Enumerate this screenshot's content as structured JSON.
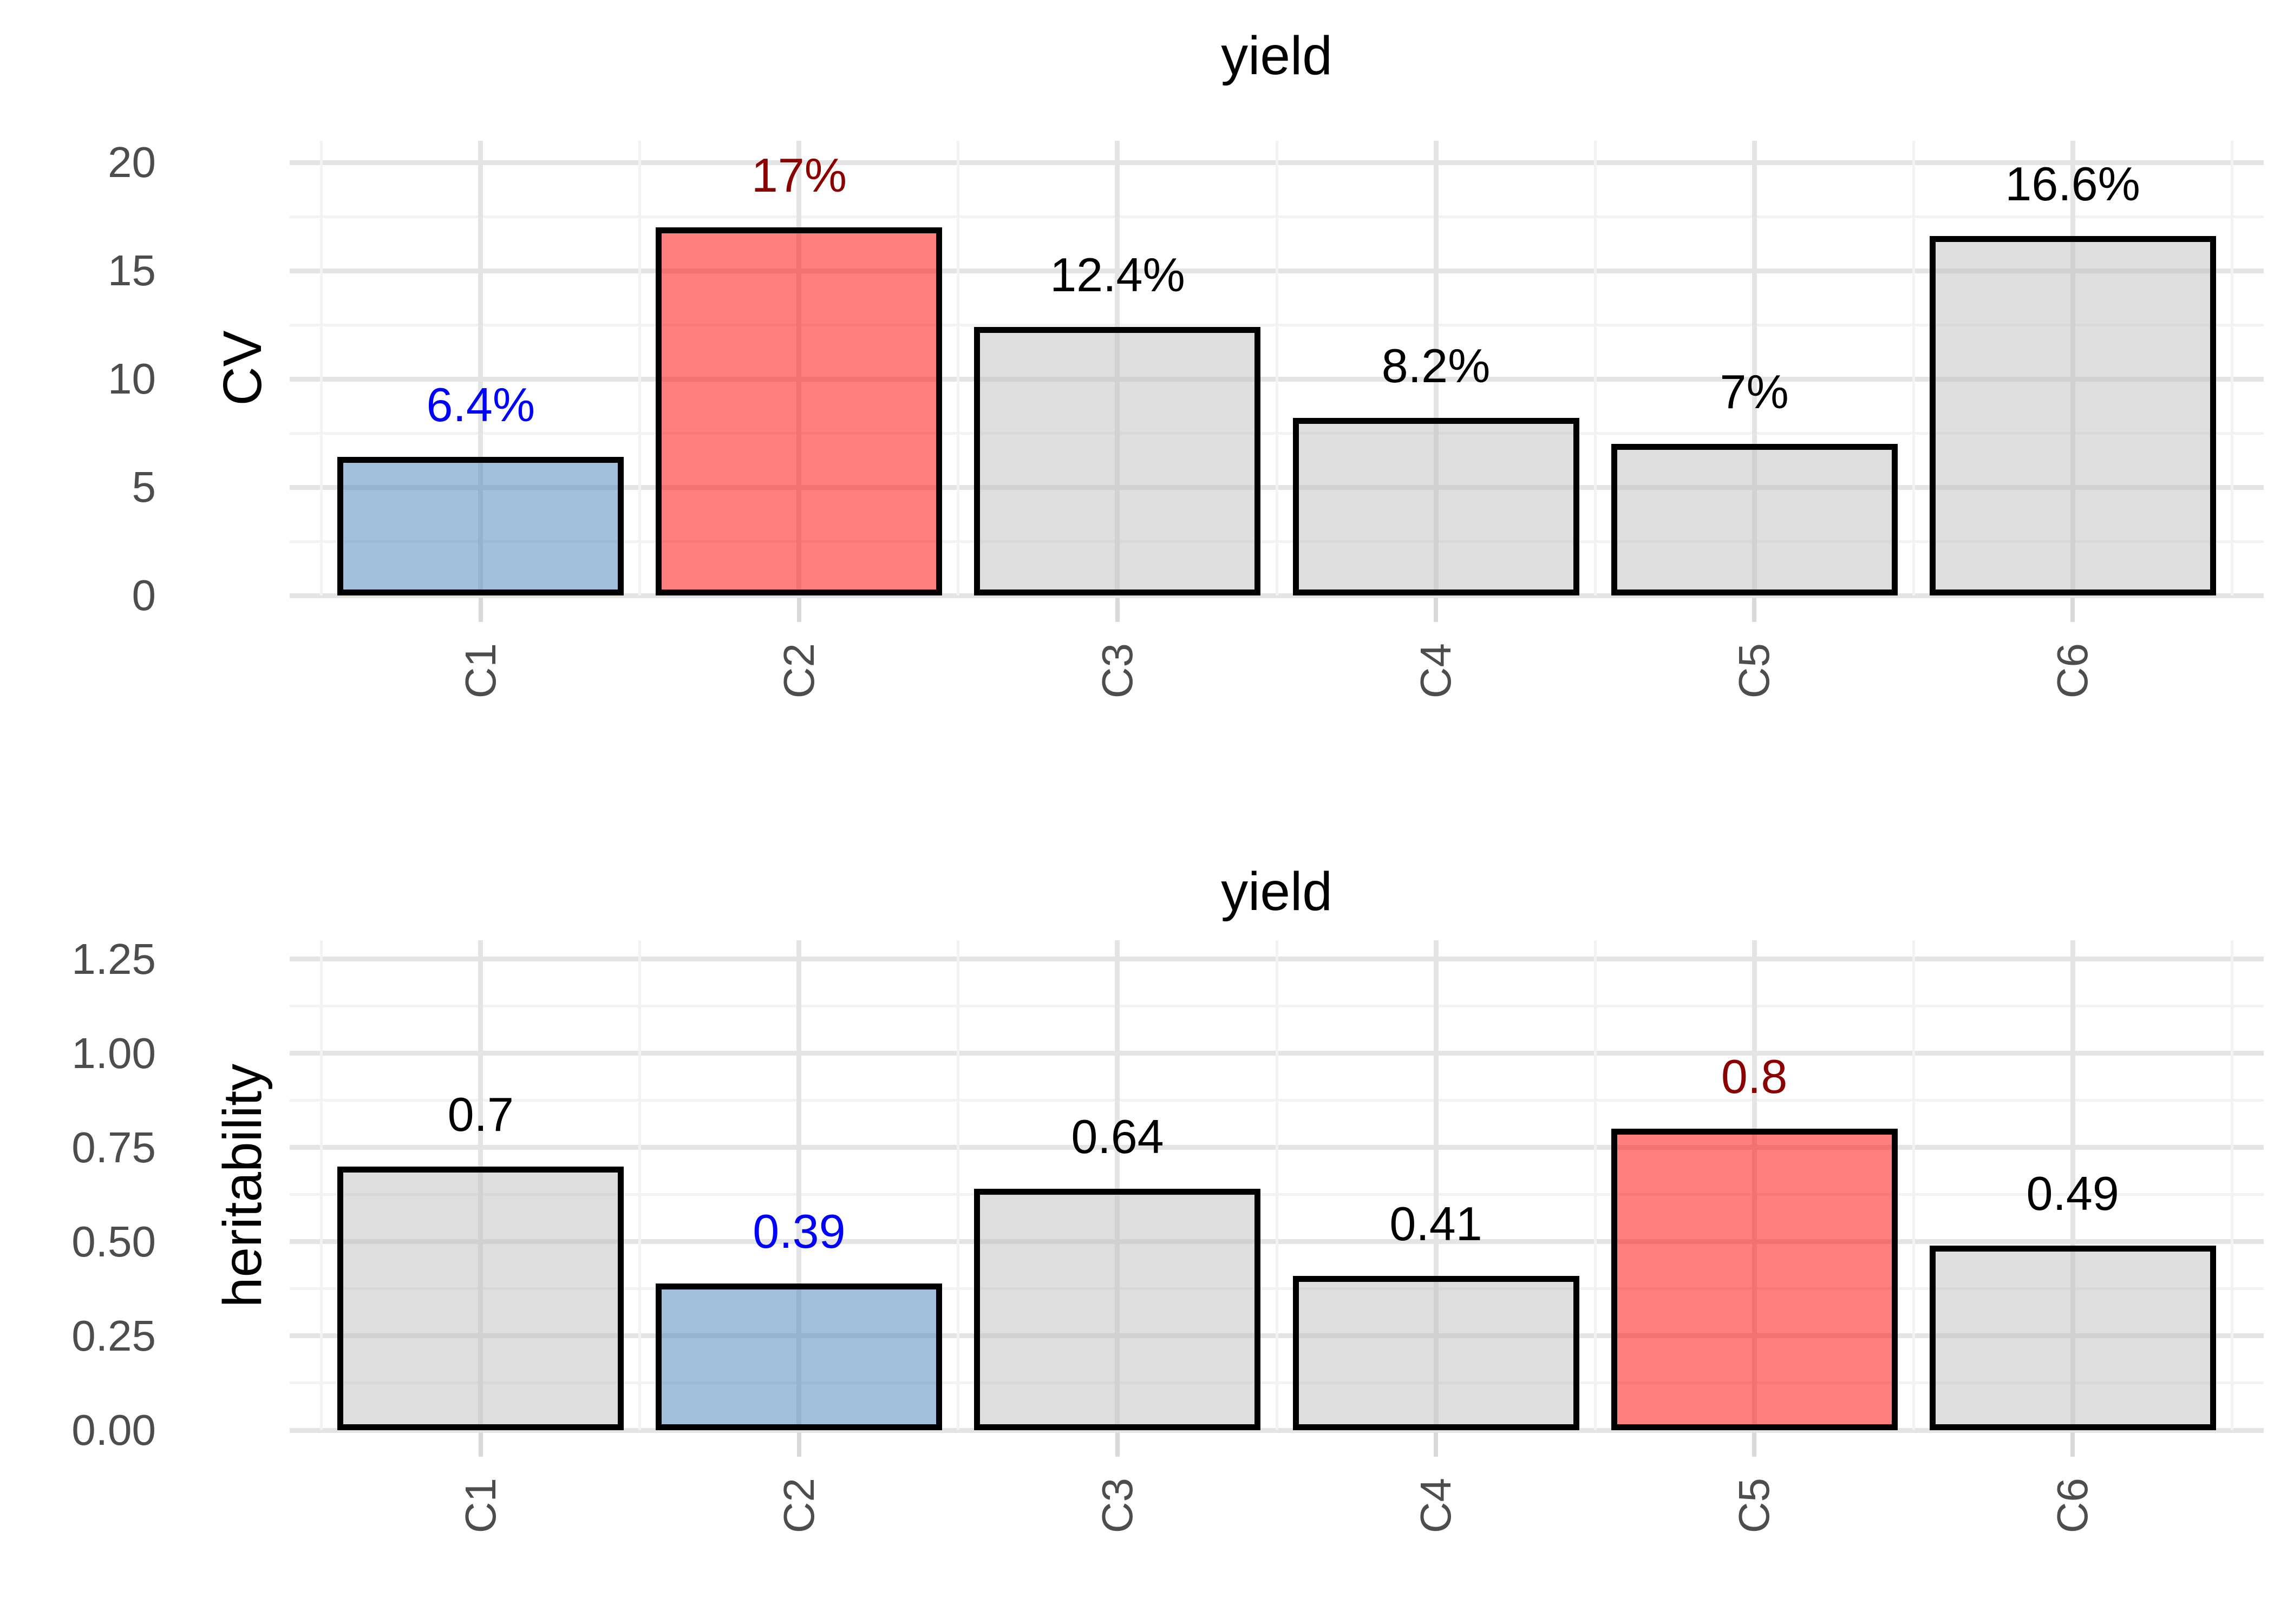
{
  "figure": {
    "description": "Two stacked bar charts sharing categories C1-C6, both titled yield",
    "background": "#FFFFFF"
  },
  "colors": {
    "grid_major": "#E4E4E4",
    "grid_minor": "#F2F2F2",
    "axis_text": "#4D4D4D",
    "tick_mark": "#D9D9D9",
    "bar_border": "#000000",
    "highlight_low_fill": "rgba(70,130,180,0.5)",
    "highlight_high_fill": "rgba(255,0,0,0.5)",
    "default_fill": "rgba(190,190,190,0.5)",
    "label_blue": "#0000FF",
    "label_darkred": "#8B0000",
    "label_black": "#000000"
  },
  "chart_data": [
    {
      "type": "bar",
      "title": "yield",
      "xlabel": "",
      "ylabel": "CV",
      "categories": [
        "C1",
        "C2",
        "C3",
        "C4",
        "C5",
        "C6"
      ],
      "values": [
        6.4,
        17,
        12.4,
        8.2,
        7,
        16.6
      ],
      "bar_labels": [
        "6.4%",
        "17%",
        "12.4%",
        "8.2%",
        "7%",
        "16.6%"
      ],
      "bar_label_colors": [
        "#0000FF",
        "#8B0000",
        "#000000",
        "#000000",
        "#000000",
        "#000000"
      ],
      "bar_fills": [
        "rgba(70,130,180,0.5)",
        "rgba(255,0,0,0.5)",
        "rgba(190,190,190,0.5)",
        "rgba(190,190,190,0.5)",
        "rgba(190,190,190,0.5)",
        "rgba(190,190,190,0.5)"
      ],
      "ylim": [
        0,
        21
      ],
      "yticks": [
        0,
        5,
        10,
        15,
        20
      ],
      "ytick_labels": [
        "0",
        "5",
        "10",
        "15",
        "20"
      ],
      "minor_ticks": [
        2.5,
        7.5,
        12.5,
        17.5
      ],
      "grid": "major+minor",
      "legend": "none"
    },
    {
      "type": "bar",
      "title": "yield",
      "xlabel": "",
      "ylabel": "heritability",
      "categories": [
        "C1",
        "C2",
        "C3",
        "C4",
        "C5",
        "C6"
      ],
      "values": [
        0.7,
        0.39,
        0.64,
        0.41,
        0.8,
        0.49
      ],
      "bar_labels": [
        "0.7",
        "0.39",
        "0.64",
        "0.41",
        "0.8",
        "0.49"
      ],
      "bar_label_colors": [
        "#000000",
        "#0000FF",
        "#000000",
        "#000000",
        "#8B0000",
        "#000000"
      ],
      "bar_fills": [
        "rgba(190,190,190,0.5)",
        "rgba(70,130,180,0.5)",
        "rgba(190,190,190,0.5)",
        "rgba(190,190,190,0.5)",
        "rgba(255,0,0,0.5)",
        "rgba(190,190,190,0.5)"
      ],
      "ylim": [
        0,
        1.3
      ],
      "yticks": [
        0,
        0.25,
        0.5,
        0.75,
        1.0,
        1.25
      ],
      "ytick_labels": [
        "0.00",
        "0.25",
        "0.50",
        "0.75",
        "1.00",
        "1.25"
      ],
      "minor_ticks": [
        0.125,
        0.375,
        0.625,
        0.875,
        1.125
      ],
      "grid": "major+minor",
      "legend": "none"
    }
  ]
}
